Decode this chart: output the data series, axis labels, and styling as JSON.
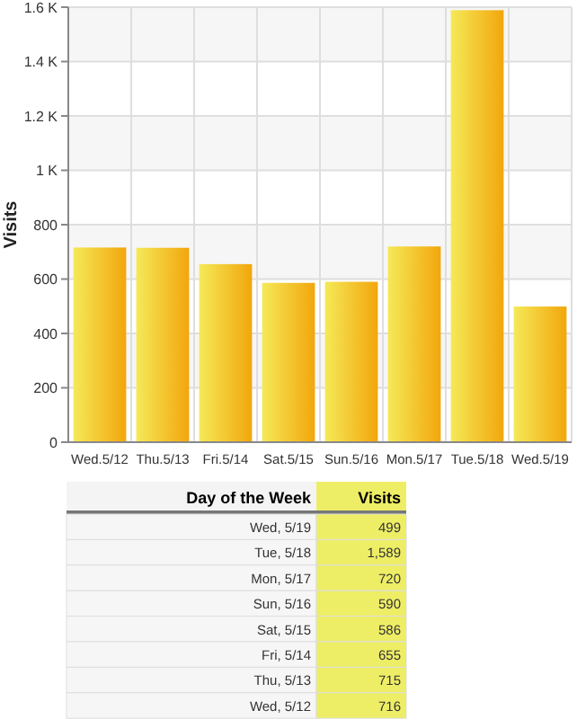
{
  "chart_data": {
    "type": "bar",
    "ylabel": "Visits",
    "categories": [
      "Wed.5/12",
      "Thu.5/13",
      "Fri.5/14",
      "Sat.5/15",
      "Sun.5/16",
      "Mon.5/17",
      "Tue.5/18",
      "Wed.5/19"
    ],
    "values": [
      716,
      715,
      655,
      586,
      590,
      720,
      1589,
      499
    ],
    "color": "#f2a60c",
    "ylim": [
      0,
      1600
    ],
    "yticks": [
      0,
      200,
      400,
      600,
      800,
      {
        "value": 1000,
        "label": "1 K"
      },
      {
        "value": 1200,
        "label": "1.2 K"
      },
      {
        "value": 1400,
        "label": "1.4 K"
      },
      {
        "value": 1600,
        "label": "1.6 K"
      }
    ],
    "grid": true,
    "annotations": [
      "Day of the Week",
      "Visits",
      "Wed, 5/19",
      "499",
      "Tue, 5/18",
      "1,589",
      "Mon, 5/17",
      "720",
      "Sun, 5/16",
      "590",
      "Sat, 5/15",
      "586",
      "Fri, 5/14",
      "655",
      "Thu, 5/13",
      "715",
      "Wed, 5/12",
      "716"
    ]
  }
}
